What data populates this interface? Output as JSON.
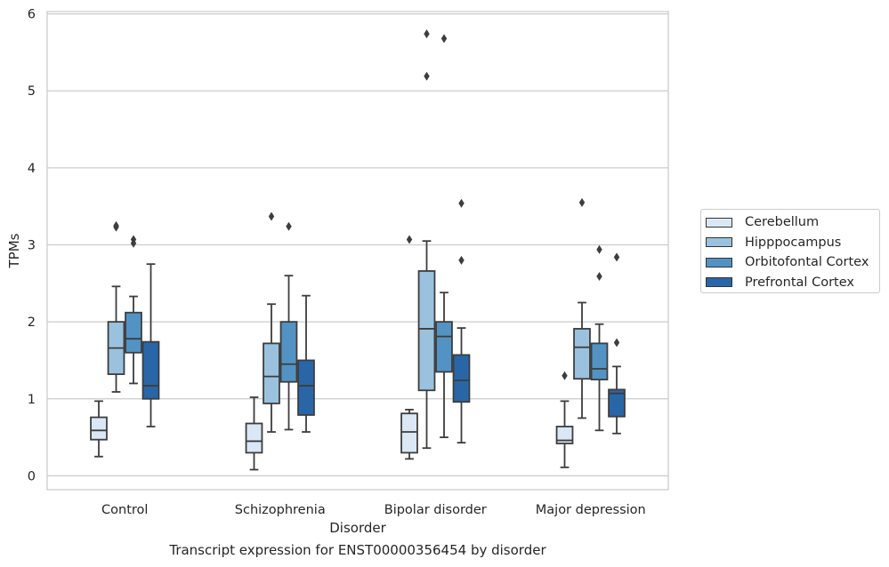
{
  "chart_data": {
    "type": "box",
    "title": "",
    "xlabel": "Disorder",
    "ylabel": "TPMs",
    "ylim": [
      -0.18,
      6.03
    ],
    "yticks": [
      0,
      1,
      2,
      3,
      4,
      5,
      6
    ],
    "grid": "horizontal",
    "legend_placement": "outside right",
    "categories": [
      "Control",
      "Schizophrenia",
      "Bipolar disorder",
      "Major depression"
    ],
    "series": [
      {
        "name": "Cerebellum",
        "color": "#dae8f5",
        "boxes": [
          {
            "whislo": 0.25,
            "q1": 0.47,
            "med": 0.59,
            "q3": 0.76,
            "whishi": 0.97,
            "fliers": []
          },
          {
            "whislo": 0.08,
            "q1": 0.3,
            "med": 0.45,
            "q3": 0.68,
            "whishi": 1.02,
            "fliers": []
          },
          {
            "whislo": 0.22,
            "q1": 0.3,
            "med": 0.57,
            "q3": 0.81,
            "whishi": 0.86,
            "fliers": [
              3.07
            ]
          },
          {
            "whislo": 0.11,
            "q1": 0.42,
            "med": 0.46,
            "q3": 0.64,
            "whishi": 0.97,
            "fliers": [
              1.3
            ]
          }
        ]
      },
      {
        "name": "Hipppocampus",
        "color": "#9ac2de",
        "boxes": [
          {
            "whislo": 1.09,
            "q1": 1.32,
            "med": 1.66,
            "q3": 2.0,
            "whishi": 2.46,
            "fliers": [
              3.23,
              3.25
            ]
          },
          {
            "whislo": 0.57,
            "q1": 0.94,
            "med": 1.29,
            "q3": 1.72,
            "whishi": 2.23,
            "fliers": [
              3.37
            ]
          },
          {
            "whislo": 0.36,
            "q1": 1.11,
            "med": 1.91,
            "q3": 2.66,
            "whishi": 3.05,
            "fliers": [
              5.19,
              5.74
            ]
          },
          {
            "whislo": 0.75,
            "q1": 1.26,
            "med": 1.67,
            "q3": 1.91,
            "whishi": 2.25,
            "fliers": [
              3.55
            ]
          }
        ]
      },
      {
        "name": "Orbitofontal Cortex",
        "color": "#5293c4",
        "boxes": [
          {
            "whislo": 1.2,
            "q1": 1.6,
            "med": 1.78,
            "q3": 2.12,
            "whishi": 2.33,
            "fliers": [
              3.02,
              3.07
            ]
          },
          {
            "whislo": 0.6,
            "q1": 1.22,
            "med": 1.45,
            "q3": 2.0,
            "whishi": 2.6,
            "fliers": [
              3.24
            ]
          },
          {
            "whislo": 0.5,
            "q1": 1.35,
            "med": 1.81,
            "q3": 2.0,
            "whishi": 2.38,
            "fliers": [
              5.68
            ]
          },
          {
            "whislo": 0.59,
            "q1": 1.25,
            "med": 1.39,
            "q3": 1.72,
            "whishi": 1.97,
            "fliers": [
              2.59,
              2.94
            ]
          }
        ]
      },
      {
        "name": "Prefrontal Cortex",
        "color": "#2866a8",
        "boxes": [
          {
            "whislo": 0.64,
            "q1": 1.0,
            "med": 1.17,
            "q3": 1.74,
            "whishi": 2.75,
            "fliers": []
          },
          {
            "whislo": 0.57,
            "q1": 0.79,
            "med": 1.17,
            "q3": 1.5,
            "whishi": 2.34,
            "fliers": []
          },
          {
            "whislo": 0.43,
            "q1": 0.96,
            "med": 1.24,
            "q3": 1.57,
            "whishi": 1.92,
            "fliers": [
              2.8,
              3.54
            ]
          },
          {
            "whislo": 0.55,
            "q1": 0.77,
            "med": 1.07,
            "q3": 1.12,
            "whishi": 1.42,
            "fliers": [
              1.73,
              2.84
            ]
          }
        ]
      }
    ]
  },
  "caption": "Transcript expression for ENST00000356454 by disorder"
}
